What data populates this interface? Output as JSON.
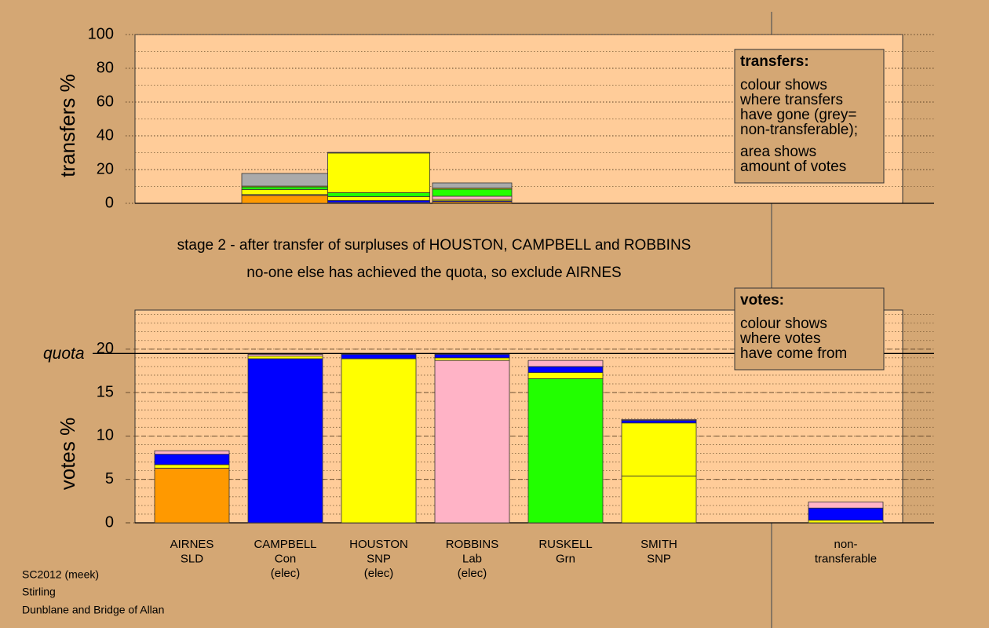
{
  "title_lines": [
    "stage 2 - after transfer of surpluses of HOUSTON, CAMPBELL and ROBBINS",
    "no-one else has achieved the quota, so exclude AIRNES"
  ],
  "footer": [
    "SC2012 (meek)",
    "Stirling",
    "Dunblane and Bridge of Allan"
  ],
  "chart_data": [
    {
      "type": "stacked-bar",
      "ylabel": "transfers %",
      "ylim": [
        0,
        100
      ],
      "yticks": [
        0,
        20,
        40,
        60,
        80,
        100
      ],
      "minor_step": 10,
      "grid_style": "dotted",
      "legend": {
        "title": "transfers:",
        "paragraphs": [
          [
            "colour shows",
            "where transfers",
            "have gone (grey=",
            "non-transferable);"
          ],
          [
            "area shows",
            "amount of votes"
          ]
        ]
      },
      "bars": [
        null,
        {
          "segments": [
            {
              "color": "#ff9900",
              "value": 4.7
            },
            {
              "color": "#ffb3c6",
              "value": 0.5
            },
            {
              "color": "#ffff00",
              "value": 3.0
            },
            {
              "color": "#22ff00",
              "value": 1.5
            },
            {
              "color": "#ffff00",
              "value": 0.5
            },
            {
              "color": "#aaaaaa",
              "value": 7.5
            }
          ]
        },
        {
          "segments": [
            {
              "color": "#ffb3c6",
              "value": 0.5
            },
            {
              "color": "#0000ff",
              "value": 1.2
            },
            {
              "color": "#ffff00",
              "value": 2.3
            },
            {
              "color": "#22ff00",
              "value": 2.3
            },
            {
              "color": "#ffff00",
              "value": 23.5
            },
            {
              "color": "#aaaaaa",
              "value": 0.4
            }
          ]
        },
        {
          "segments": [
            {
              "color": "#ff9900",
              "value": 0.9
            },
            {
              "color": "#0000ff",
              "value": 0.6
            },
            {
              "color": "#ffff00",
              "value": 0.8
            },
            {
              "color": "#ffb3c6",
              "value": 1.9
            },
            {
              "color": "#22ff00",
              "value": 4.2
            },
            {
              "color": "#ffff00",
              "value": 0.6
            },
            {
              "color": "#aaaaaa",
              "value": 3.1
            }
          ]
        },
        null,
        null,
        null,
        null
      ]
    },
    {
      "type": "stacked-bar",
      "ylabel": "votes %",
      "ylim": [
        0,
        24.5
      ],
      "yticks": [
        0,
        5,
        10,
        15,
        20
      ],
      "minor_step": 1,
      "grid_style": "dashed",
      "quota": 19.5,
      "quota_label": "quota",
      "legend": {
        "title": "votes:",
        "paragraphs": [
          [
            "colour shows",
            "where votes",
            "have come from"
          ]
        ]
      },
      "categories": [
        [
          "AIRNES",
          "SLD"
        ],
        [
          "CAMPBELL",
          "Con",
          "(elec)"
        ],
        [
          "HOUSTON",
          "SNP",
          "(elec)"
        ],
        [
          "ROBBINS",
          "Lab",
          "(elec)"
        ],
        [
          "RUSKELL",
          "Grn"
        ],
        [
          "SMITH",
          "SNP"
        ],
        null,
        [
          "non-",
          "transferable"
        ]
      ],
      "bars": [
        {
          "segments": [
            {
              "color": "#ff9900",
              "value": 6.3
            },
            {
              "color": "#ffff00",
              "value": 0.4
            },
            {
              "color": "#0000ff",
              "value": 1.2
            },
            {
              "color": "#ffb3c6",
              "value": 0.4
            }
          ]
        },
        {
          "segments": [
            {
              "color": "#0000ff",
              "value": 18.9
            },
            {
              "color": "#ffff00",
              "value": 0.3
            },
            {
              "color": "#ffb3c6",
              "value": 0.2
            }
          ]
        },
        {
          "segments": [
            {
              "color": "#ffff00",
              "value": 18.9
            },
            {
              "color": "#0000ff",
              "value": 0.5
            }
          ]
        },
        {
          "segments": [
            {
              "color": "#ffb3c6",
              "value": 18.7
            },
            {
              "color": "#ffff00",
              "value": 0.3
            },
            {
              "color": "#0000ff",
              "value": 0.4
            }
          ]
        },
        {
          "segments": [
            {
              "color": "#22ff00",
              "value": 16.6
            },
            {
              "color": "#ffff00",
              "value": 0.7
            },
            {
              "color": "#0000ff",
              "value": 0.7
            },
            {
              "color": "#ffb3c6",
              "value": 0.7
            }
          ]
        },
        {
          "segments": [
            {
              "color": "#ffff00",
              "value": 5.4
            },
            {
              "color": "#ffff00",
              "value": 6.1
            },
            {
              "color": "#0000ff",
              "value": 0.3
            },
            {
              "color": "#ffb3c6",
              "value": 0.1
            }
          ]
        },
        null,
        {
          "segments": [
            {
              "color": "#ffff00",
              "value": 0.3
            },
            {
              "color": "#0000ff",
              "value": 1.4
            },
            {
              "color": "#ffb3c6",
              "value": 0.7
            }
          ]
        }
      ]
    }
  ]
}
